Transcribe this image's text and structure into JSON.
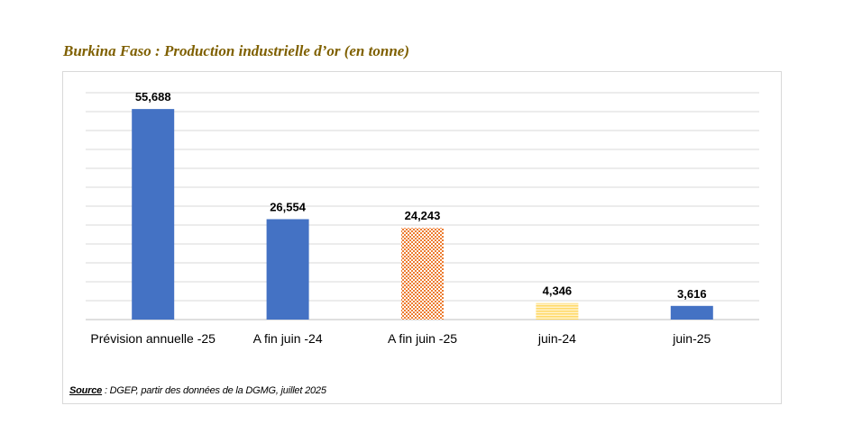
{
  "title": "Burkina Faso : Production industrielle d’or (en tonne)",
  "source": {
    "label": "Source",
    "text": " : DGEP,  partir des données de la DGMG, juillet 2025"
  },
  "chart_data": {
    "type": "bar",
    "categories": [
      "Prévision annuelle -25",
      "A fin juin -24",
      "A fin juin -25",
      "juin-24",
      "juin-25"
    ],
    "values": [
      55.688,
      26.554,
      24.243,
      4.346,
      3.616
    ],
    "data_labels": [
      "55,688",
      "26,554",
      "24,243",
      "4,346",
      "3,616"
    ],
    "bar_styles": [
      "solid",
      "solid",
      "checker",
      "stripe",
      "solid"
    ],
    "ylim": [
      0,
      60
    ],
    "y_gridline_step": 5,
    "grid": true,
    "y_tick_labels_shown": false,
    "legend": "none",
    "colors": {
      "bar_blue": "#4472c4",
      "checker_orange": "#ed7d31",
      "stripe_yellow": "#ffd966",
      "grid": "#d9d9d9",
      "axis": "#bfbfbf"
    }
  }
}
